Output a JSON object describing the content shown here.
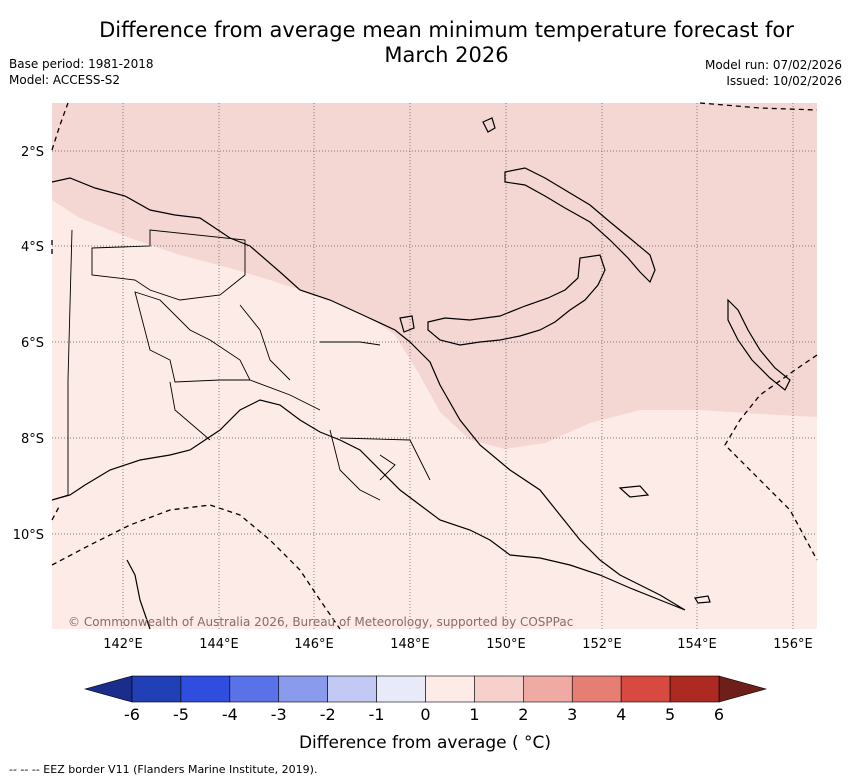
{
  "title": "Difference from average mean minimum temperature forecast for March 2026",
  "title_line1": "Difference from average mean minimum temperature forecast for",
  "title_line2": "March 2026",
  "meta_left": {
    "base_period": "Base period: 1981-2018",
    "model": "Model: ACCESS-S2"
  },
  "meta_right": {
    "model_run": "Model run: 07/02/2026",
    "issued": "Issued: 10/02/2026"
  },
  "map": {
    "lon_ticks": [
      "142°E",
      "144°E",
      "146°E",
      "148°E",
      "150°E",
      "152°E",
      "154°E",
      "156°E"
    ],
    "lat_ticks": [
      "2°S",
      "4°S",
      "6°S",
      "8°S",
      "10°S"
    ],
    "copyright": "© Commonwealth of Australia 2026, Bureau of Meteorology, supported by COSPPac",
    "anomaly_classes": [
      {
        "range": "1 to 2",
        "color": "#f4d6d3",
        "area": "northern seas and islands"
      },
      {
        "range": "0 to 1",
        "color": "#fdebe8",
        "area": "mainland and southern seas"
      }
    ]
  },
  "colorbar": {
    "ticks": [
      "-6",
      "-5",
      "-4",
      "-3",
      "-2",
      "-1",
      "0",
      "1",
      "2",
      "3",
      "4",
      "5",
      "6"
    ],
    "colors": [
      "#2240b5",
      "#2f4ee0",
      "#5a72e8",
      "#8a9bec",
      "#c2c9f4",
      "#e8eaf9",
      "#fdebe8",
      "#f6d0cb",
      "#efaaa3",
      "#e67e74",
      "#d84a3f",
      "#ad2a22"
    ],
    "under_color": "#1a2d8a",
    "over_color": "#6e1f1a",
    "label": "Difference from average ( °C)"
  },
  "footnote": "-- -- -- EEZ border V11 (Flanders Marine Institute, 2019)."
}
